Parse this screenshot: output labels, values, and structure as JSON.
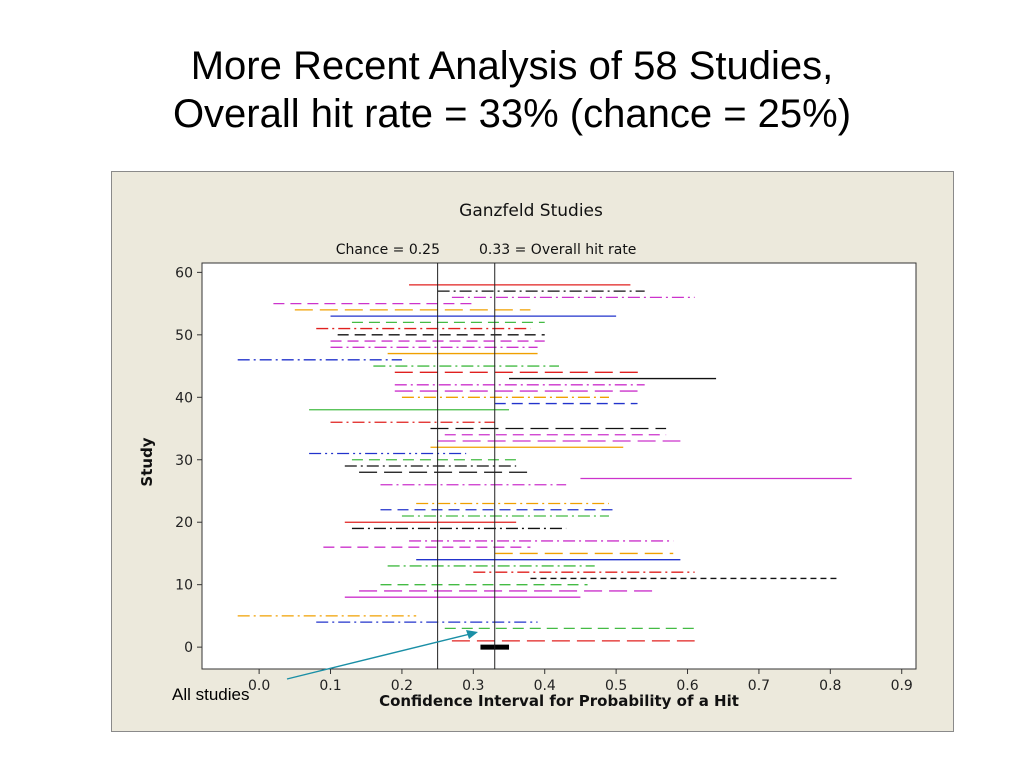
{
  "slide": {
    "title_line1": "More Recent Analysis of 58 Studies,",
    "title_line2": "Overall hit rate = 33% (chance = 25%)",
    "callout": "All studies"
  },
  "chart_data": {
    "type": "interval",
    "title": "Ganzfeld Studies",
    "xlabel": "Confidence Interval for Probability of a Hit",
    "ylabel": "Study",
    "xlim": [
      -0.08,
      0.92
    ],
    "ylim": [
      -3.5,
      61.5
    ],
    "xticks": [
      0.0,
      0.1,
      0.2,
      0.3,
      0.4,
      0.5,
      0.6,
      0.7,
      0.8,
      0.9
    ],
    "xtick_labels": [
      "0.0",
      "0.1",
      "0.2",
      "0.3",
      "0.4",
      "0.5",
      "0.6",
      "0.7",
      "0.8",
      "0.9"
    ],
    "yticks": [
      0,
      10,
      20,
      30,
      40,
      50,
      60
    ],
    "ytick_labels": [
      "0",
      "10",
      "20",
      "30",
      "40",
      "50",
      "60"
    ],
    "grid": false,
    "reference_lines": [
      {
        "x": 0.25,
        "label": "Chance = 0.25"
      },
      {
        "x": 0.33,
        "label": "0.33 = Overall hit rate"
      }
    ],
    "overall": {
      "study": 0,
      "low": 0.31,
      "high": 0.35,
      "label": "All studies"
    },
    "colors": {
      "red": "#e0201f",
      "black": "#111111",
      "magenta": "#cc33cc",
      "orange": "#f0a000",
      "blue": "#2233cc",
      "green": "#44bb44",
      "frame_bg": "#ece9dc",
      "plot_bg": "#ffffff",
      "callout_arrow": "#1a8fa6"
    },
    "dash_patterns": {
      "solid": "none",
      "dash": "11,6",
      "longdash": "18,7",
      "dashdot": "12,4,2,4",
      "dashdotdot": "12,4,2,4,2,4",
      "shortdash": "6,4"
    },
    "studies": [
      {
        "study": 1,
        "low": 0.27,
        "high": 0.61,
        "color": "red",
        "dash": "longdash"
      },
      {
        "study": 3,
        "low": 0.26,
        "high": 0.61,
        "color": "green",
        "dash": "dash"
      },
      {
        "study": 4,
        "low": 0.08,
        "high": 0.39,
        "color": "blue",
        "dash": "dashdot"
      },
      {
        "study": 5,
        "low": -0.03,
        "high": 0.22,
        "color": "orange",
        "dash": "dashdot"
      },
      {
        "study": 8,
        "low": 0.12,
        "high": 0.45,
        "color": "magenta",
        "dash": "solid"
      },
      {
        "study": 9,
        "low": 0.14,
        "high": 0.56,
        "color": "magenta",
        "dash": "longdash"
      },
      {
        "study": 10,
        "low": 0.17,
        "high": 0.46,
        "color": "green",
        "dash": "dash"
      },
      {
        "study": 11,
        "low": 0.38,
        "high": 0.81,
        "color": "black",
        "dash": "shortdash"
      },
      {
        "study": 12,
        "low": 0.3,
        "high": 0.61,
        "color": "red",
        "dash": "dashdot"
      },
      {
        "study": 13,
        "low": 0.18,
        "high": 0.47,
        "color": "green",
        "dash": "dashdot"
      },
      {
        "study": 14,
        "low": 0.22,
        "high": 0.59,
        "color": "blue",
        "dash": "solid"
      },
      {
        "study": 15,
        "low": 0.33,
        "high": 0.58,
        "color": "orange",
        "dash": "longdash"
      },
      {
        "study": 16,
        "low": 0.09,
        "high": 0.38,
        "color": "magenta",
        "dash": "dash"
      },
      {
        "study": 17,
        "low": 0.21,
        "high": 0.58,
        "color": "magenta",
        "dash": "dashdot"
      },
      {
        "study": 19,
        "low": 0.13,
        "high": 0.43,
        "color": "black",
        "dash": "dashdot"
      },
      {
        "study": 20,
        "low": 0.12,
        "high": 0.36,
        "color": "red",
        "dash": "solid"
      },
      {
        "study": 21,
        "low": 0.2,
        "high": 0.49,
        "color": "green",
        "dash": "dashdot"
      },
      {
        "study": 22,
        "low": 0.17,
        "high": 0.5,
        "color": "blue",
        "dash": "dash"
      },
      {
        "study": 23,
        "low": 0.22,
        "high": 0.49,
        "color": "orange",
        "dash": "dashdot"
      },
      {
        "study": 26,
        "low": 0.17,
        "high": 0.43,
        "color": "magenta",
        "dash": "dashdot"
      },
      {
        "study": 27,
        "low": 0.45,
        "high": 0.83,
        "color": "magenta",
        "dash": "solid"
      },
      {
        "study": 28,
        "low": 0.14,
        "high": 0.38,
        "color": "black",
        "dash": "longdash"
      },
      {
        "study": 29,
        "low": 0.12,
        "high": 0.36,
        "color": "black",
        "dash": "dashdot"
      },
      {
        "study": 30,
        "low": 0.13,
        "high": 0.36,
        "color": "green",
        "dash": "dash"
      },
      {
        "study": 31,
        "low": 0.07,
        "high": 0.29,
        "color": "blue",
        "dash": "dashdotdot"
      },
      {
        "study": 32,
        "low": 0.24,
        "high": 0.51,
        "color": "orange",
        "dash": "solid"
      },
      {
        "study": 33,
        "low": 0.25,
        "high": 0.59,
        "color": "magenta",
        "dash": "longdash"
      },
      {
        "study": 34,
        "low": 0.26,
        "high": 0.57,
        "color": "magenta",
        "dash": "dash"
      },
      {
        "study": 35,
        "low": 0.24,
        "high": 0.57,
        "color": "black",
        "dash": "longdash"
      },
      {
        "study": 36,
        "low": 0.1,
        "high": 0.33,
        "color": "red",
        "dash": "dashdot"
      },
      {
        "study": 38,
        "low": 0.07,
        "high": 0.35,
        "color": "green",
        "dash": "solid"
      },
      {
        "study": 39,
        "low": 0.33,
        "high": 0.53,
        "color": "blue",
        "dash": "dash"
      },
      {
        "study": 40,
        "low": 0.2,
        "high": 0.49,
        "color": "orange",
        "dash": "dashdot"
      },
      {
        "study": 41,
        "low": 0.19,
        "high": 0.53,
        "color": "magenta",
        "dash": "longdash"
      },
      {
        "study": 42,
        "low": 0.19,
        "high": 0.54,
        "color": "magenta",
        "dash": "dashdot"
      },
      {
        "study": 43,
        "low": 0.35,
        "high": 0.64,
        "color": "black",
        "dash": "solid"
      },
      {
        "study": 44,
        "low": 0.19,
        "high": 0.54,
        "color": "red",
        "dash": "longdash"
      },
      {
        "study": 45,
        "low": 0.16,
        "high": 0.42,
        "color": "green",
        "dash": "dashdot"
      },
      {
        "study": 46,
        "low": -0.03,
        "high": 0.2,
        "color": "blue",
        "dash": "dashdot"
      },
      {
        "study": 47,
        "low": 0.18,
        "high": 0.39,
        "color": "orange",
        "dash": "solid"
      },
      {
        "study": 48,
        "low": 0.1,
        "high": 0.39,
        "color": "magenta",
        "dash": "dashdot"
      },
      {
        "study": 49,
        "low": 0.1,
        "high": 0.4,
        "color": "magenta",
        "dash": "dash"
      },
      {
        "study": 50,
        "low": 0.11,
        "high": 0.4,
        "color": "black",
        "dash": "dash"
      },
      {
        "study": 51,
        "low": 0.08,
        "high": 0.38,
        "color": "red",
        "dash": "dashdot"
      },
      {
        "study": 52,
        "low": 0.13,
        "high": 0.4,
        "color": "green",
        "dash": "dash"
      },
      {
        "study": 53,
        "low": 0.1,
        "high": 0.5,
        "color": "blue",
        "dash": "solid"
      },
      {
        "study": 54,
        "low": 0.05,
        "high": 0.38,
        "color": "orange",
        "dash": "longdash"
      },
      {
        "study": 55,
        "low": 0.02,
        "high": 0.3,
        "color": "magenta",
        "dash": "dash"
      },
      {
        "study": 56,
        "low": 0.27,
        "high": 0.61,
        "color": "magenta",
        "dash": "dashdot"
      },
      {
        "study": 57,
        "low": 0.25,
        "high": 0.54,
        "color": "black",
        "dash": "dashdot"
      },
      {
        "study": 58,
        "low": 0.21,
        "high": 0.52,
        "color": "red",
        "dash": "solid"
      }
    ]
  }
}
